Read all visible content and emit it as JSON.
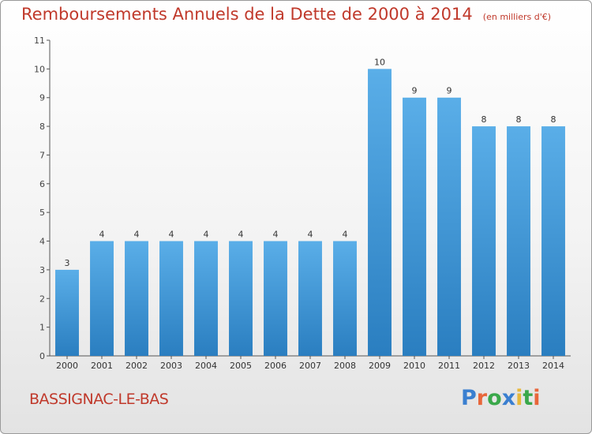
{
  "chart_data": {
    "type": "bar",
    "title": "Remboursements Annuels de la Dette de 2000 à 2014",
    "subtitle": "(en milliers d'€)",
    "categories": [
      "2000",
      "2001",
      "2002",
      "2003",
      "2004",
      "2005",
      "2006",
      "2007",
      "2008",
      "2009",
      "2010",
      "2011",
      "2012",
      "2013",
      "2014"
    ],
    "values": [
      3,
      4,
      4,
      4,
      4,
      4,
      4,
      4,
      4,
      10,
      9,
      9,
      8,
      8,
      8
    ],
    "ylim": [
      0,
      11
    ],
    "yticks": [
      "0",
      "1",
      "2",
      "3",
      "4",
      "5",
      "6",
      "7",
      "8",
      "9",
      "10",
      "11"
    ],
    "grid": false,
    "bar_color": "#5aaee8",
    "bar_color_dark": "#2a7ec0"
  },
  "commune": "BASSIGNAC-LE-BAS",
  "logo": {
    "text": "Proxiti",
    "colors": [
      "#3a7fd0",
      "#e8663a",
      "#3aa84a",
      "#3a7fd0",
      "#e8b83a",
      "#3aa84a",
      "#e8663a"
    ]
  },
  "accent_color": "#c0392b"
}
